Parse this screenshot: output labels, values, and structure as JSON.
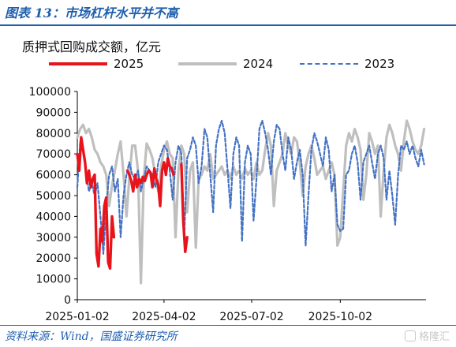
{
  "figure_title": "图表 13：市场杠杆水平并不高",
  "source_note": "资料来源：Wind，国盛证券研究所",
  "watermark": "格隆汇",
  "colors": {
    "s2025": "#e8141c",
    "s2024": "#bfbfbf",
    "s2023": "#4472c4",
    "accent": "#1f5fb0"
  },
  "chart_data": {
    "type": "line",
    "title": "质押式回购成交额，亿元",
    "xlabel": "",
    "ylabel": "",
    "ylim": [
      0,
      100000
    ],
    "y_ticks": [
      0,
      10000,
      20000,
      30000,
      40000,
      50000,
      60000,
      70000,
      80000,
      90000,
      100000
    ],
    "x_tick_labels": [
      "2025-01-02",
      "2025-04-02",
      "2025-07-02",
      "2025-10-02"
    ],
    "x_tick_days": [
      0,
      90,
      181,
      273
    ],
    "x_range_days": [
      0,
      362
    ],
    "legend_position": "top",
    "grid": false,
    "series": [
      {
        "name": "2025",
        "x": [
          0,
          2,
          4,
          6,
          8,
          10,
          12,
          14,
          16,
          18,
          20,
          22,
          24,
          26,
          28,
          30,
          32,
          34,
          36,
          38,
          40,
          42,
          44,
          46,
          48,
          50,
          52,
          54,
          56,
          58,
          60,
          62,
          64,
          66,
          68,
          70,
          72,
          74,
          76,
          78,
          80,
          82,
          84,
          86,
          88,
          90,
          92,
          94,
          96,
          98,
          100,
          102,
          104,
          106,
          108,
          110,
          112,
          114
        ],
        "y": [
          70000,
          62000,
          78000,
          72000,
          66000,
          56000,
          62000,
          54000,
          58000,
          60000,
          22000,
          16000,
          34000,
          28000,
          45000,
          49000,
          18000,
          15000,
          40000,
          30000,
          null,
          null,
          null,
          null,
          null,
          null,
          62000,
          60000,
          57000,
          52000,
          60000,
          54000,
          58000,
          56000,
          59000,
          57000,
          60000,
          62000,
          61000,
          54000,
          63000,
          58000,
          55000,
          45000,
          62000,
          66000,
          60000,
          68000,
          64000,
          63000,
          60000,
          null,
          null,
          null,
          65000,
          38000,
          23000,
          30000
        ]
      },
      {
        "name": "2024",
        "x": [
          0,
          3,
          6,
          9,
          12,
          15,
          18,
          21,
          24,
          27,
          30,
          33,
          36,
          39,
          42,
          45,
          48,
          51,
          54,
          57,
          60,
          63,
          66,
          69,
          72,
          75,
          78,
          81,
          84,
          87,
          90,
          93,
          96,
          99,
          102,
          105,
          108,
          111,
          114,
          117,
          120,
          123,
          126,
          129,
          132,
          135,
          138,
          141,
          144,
          147,
          150,
          153,
          156,
          159,
          162,
          165,
          168,
          171,
          174,
          177,
          180,
          183,
          186,
          189,
          192,
          195,
          198,
          201,
          204,
          207,
          210,
          213,
          216,
          219,
          222,
          225,
          228,
          231,
          234,
          237,
          240,
          243,
          246,
          249,
          252,
          255,
          258,
          261,
          264,
          267,
          270,
          273,
          276,
          279,
          282,
          285,
          288,
          291,
          294,
          297,
          300,
          303,
          306,
          309,
          312,
          315,
          318,
          321,
          324,
          327,
          330,
          333,
          336,
          339,
          342,
          345,
          348,
          351,
          354,
          357,
          360
        ],
        "y": [
          78000,
          82000,
          84000,
          80000,
          82000,
          78000,
          72000,
          70000,
          66000,
          64000,
          60000,
          45000,
          55000,
          62000,
          70000,
          76000,
          60000,
          40000,
          58000,
          74000,
          74000,
          62000,
          8000,
          58000,
          75000,
          72000,
          68000,
          60000,
          52000,
          64000,
          72000,
          76000,
          70000,
          68000,
          30000,
          62000,
          74000,
          70000,
          42000,
          62000,
          66000,
          25000,
          58000,
          60000,
          64000,
          62000,
          70000,
          58000,
          60000,
          62000,
          64000,
          60000,
          62000,
          58000,
          64000,
          60000,
          62000,
          58000,
          63000,
          60000,
          62000,
          58000,
          66000,
          60000,
          62000,
          72000,
          80000,
          74000,
          45000,
          62000,
          66000,
          70000,
          80000,
          74000,
          70000,
          78000,
          76000,
          66000,
          50000,
          64000,
          70000,
          74000,
          68000,
          60000,
          62000,
          64000,
          58000,
          62000,
          66000,
          60000,
          26000,
          30000,
          52000,
          74000,
          80000,
          76000,
          82000,
          78000,
          72000,
          48000,
          60000,
          80000,
          76000,
          70000,
          74000,
          40000,
          62000,
          78000,
          84000,
          80000,
          74000,
          70000,
          62000,
          76000,
          86000,
          82000,
          76000,
          72000,
          70000,
          74000,
          82000
        ]
      },
      {
        "name": "2023",
        "x": [
          0,
          3,
          6,
          9,
          12,
          15,
          18,
          21,
          24,
          27,
          30,
          33,
          36,
          39,
          42,
          45,
          48,
          51,
          54,
          57,
          60,
          63,
          66,
          69,
          72,
          75,
          78,
          81,
          84,
          87,
          90,
          93,
          96,
          99,
          102,
          105,
          108,
          111,
          114,
          117,
          120,
          123,
          126,
          129,
          132,
          135,
          138,
          141,
          144,
          147,
          150,
          153,
          156,
          159,
          162,
          165,
          168,
          171,
          174,
          177,
          180,
          183,
          186,
          189,
          192,
          195,
          198,
          201,
          204,
          207,
          210,
          213,
          216,
          219,
          222,
          225,
          228,
          231,
          234,
          237,
          240,
          243,
          246,
          249,
          252,
          255,
          258,
          261,
          264,
          267,
          270,
          273,
          276,
          279,
          282,
          285,
          288,
          291,
          294,
          297,
          300,
          303,
          306,
          309,
          312,
          315,
          318,
          321,
          324,
          327,
          330,
          333,
          336,
          339,
          342,
          345,
          348,
          351,
          354,
          357,
          360
        ],
        "y": [
          54000,
          76000,
          72000,
          62000,
          52000,
          56000,
          50000,
          56000,
          40000,
          22000,
          45000,
          60000,
          64000,
          52000,
          58000,
          30000,
          50000,
          60000,
          66000,
          60000,
          58000,
          62000,
          52000,
          58000,
          64000,
          62000,
          60000,
          54000,
          66000,
          70000,
          74000,
          72000,
          62000,
          48000,
          66000,
          74000,
          70000,
          30000,
          68000,
          72000,
          78000,
          74000,
          56000,
          64000,
          82000,
          78000,
          60000,
          42000,
          74000,
          82000,
          86000,
          80000,
          62000,
          44000,
          70000,
          78000,
          74000,
          28000,
          66000,
          74000,
          70000,
          38000,
          58000,
          82000,
          86000,
          80000,
          72000,
          60000,
          76000,
          84000,
          82000,
          70000,
          62000,
          78000,
          72000,
          58000,
          66000,
          72000,
          60000,
          26000,
          50000,
          72000,
          80000,
          76000,
          70000,
          64000,
          78000,
          72000,
          52000,
          60000,
          36000,
          33000,
          34000,
          60000,
          62000,
          70000,
          74000,
          66000,
          48000,
          66000,
          70000,
          74000,
          66000,
          58000,
          70000,
          74000,
          68000,
          48000,
          62000,
          50000,
          36000,
          60000,
          74000,
          72000,
          76000,
          70000,
          74000,
          68000,
          64000,
          72000,
          65000
        ]
      }
    ]
  }
}
